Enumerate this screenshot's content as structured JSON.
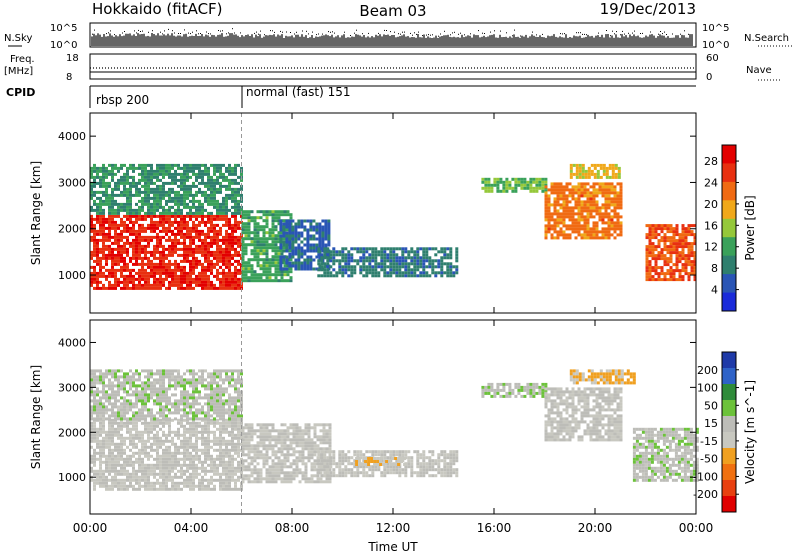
{
  "header": {
    "title": "Hokkaido (fitACF)",
    "beam": "Beam 03",
    "date": "19/Dec/2013"
  },
  "strip_labels": {
    "nsky": "N.Sky",
    "nsearch": "N.Search",
    "freq_line1": "Freq.",
    "freq_line2": "[MHz]",
    "nave": "Nave",
    "cpid": "CPID",
    "nsky_ticks": [
      "10^5",
      "10^0"
    ],
    "freq_ticks": [
      "18",
      "8"
    ],
    "nave_ticks": [
      "60",
      "0"
    ]
  },
  "cpid_modes": [
    {
      "label": "rbsp 200",
      "start_hour": 0,
      "end_hour": 6
    },
    {
      "label": "normal (fast) 151",
      "start_hour": 6,
      "end_hour": 24
    }
  ],
  "colors": {
    "power": [
      "#1a2bd9",
      "#2a55b5",
      "#2f7f6e",
      "#3aa15a",
      "#95c83a",
      "#f0a81a",
      "#f06a12",
      "#e83010",
      "#e30000"
    ],
    "velocity": [
      "#1f3aa8",
      "#2f63c8",
      "#2f8b3a",
      "#6cc23a",
      "#bdbdb8",
      "#c8c8c0",
      "#f0a020",
      "#f07010",
      "#e84010",
      "#e00000"
    ]
  },
  "chart_data": [
    {
      "type": "heatmap",
      "name": "power",
      "xlabel": "Time UT",
      "ylabel": "Slant Range [km]",
      "x_ticks": [
        "00:00",
        "04:00",
        "08:00",
        "12:00",
        "16:00",
        "20:00",
        "00:00"
      ],
      "y_ticks": [
        1000,
        2000,
        3000,
        4000
      ],
      "xlim_hours": [
        0,
        24
      ],
      "ylim_km": [
        180,
        4500
      ],
      "colorbar": {
        "label": "Power [dB]",
        "ticks": [
          4,
          8,
          12,
          16,
          20,
          24,
          28
        ],
        "range": [
          0,
          31
        ]
      },
      "regions": [
        {
          "h0": 0,
          "h1": 6,
          "r0": 700,
          "r1": 2300,
          "value": 27
        },
        {
          "h0": 0,
          "h1": 6,
          "r0": 2300,
          "r1": 3400,
          "value": 10
        },
        {
          "h0": 6,
          "h1": 8,
          "r0": 900,
          "r1": 2400,
          "value": 12
        },
        {
          "h0": 7.5,
          "h1": 9.5,
          "r0": 1100,
          "r1": 2200,
          "value": 6
        },
        {
          "h0": 9,
          "h1": 14.5,
          "r0": 1000,
          "r1": 1600,
          "value": 8
        },
        {
          "h0": 15.5,
          "h1": 18,
          "r0": 2800,
          "r1": 3100,
          "value": 14
        },
        {
          "h0": 18,
          "h1": 21,
          "r0": 1800,
          "r1": 3000,
          "value": 22
        },
        {
          "h0": 19,
          "h1": 21,
          "r0": 3100,
          "r1": 3400,
          "value": 18
        },
        {
          "h0": 22,
          "h1": 24,
          "r0": 900,
          "r1": 2100,
          "value": 24
        }
      ]
    },
    {
      "type": "heatmap",
      "name": "velocity",
      "xlabel": "Time UT",
      "ylabel": "Slant Range [km]",
      "x_ticks": [
        "00:00",
        "04:00",
        "08:00",
        "12:00",
        "16:00",
        "20:00",
        "00:00"
      ],
      "y_ticks": [
        1000,
        2000,
        3000,
        4000
      ],
      "xlim_hours": [
        0,
        24
      ],
      "ylim_km": [
        180,
        4500
      ],
      "colorbar": {
        "label": "Velocity [m s^-1]",
        "ticks": [
          200,
          100,
          50,
          15,
          -15,
          -50,
          -100,
          -200
        ],
        "range": [
          -250,
          250
        ]
      },
      "regions": [
        {
          "h0": 0,
          "h1": 6,
          "r0": 700,
          "r1": 2300,
          "value": 0
        },
        {
          "h0": 0,
          "h1": 6,
          "r0": 2300,
          "r1": 3400,
          "value": 30
        },
        {
          "h0": 6,
          "h1": 9.5,
          "r0": 900,
          "r1": 2200,
          "value": 0
        },
        {
          "h0": 9,
          "h1": 14.5,
          "r0": 1000,
          "r1": 1600,
          "value": 0
        },
        {
          "h0": 10.5,
          "h1": 12.5,
          "r0": 1300,
          "r1": 1450,
          "value": -40
        },
        {
          "h0": 15.5,
          "h1": 18,
          "r0": 2800,
          "r1": 3100,
          "value": 40
        },
        {
          "h0": 18,
          "h1": 21,
          "r0": 1800,
          "r1": 3000,
          "value": 5
        },
        {
          "h0": 19,
          "h1": 21.5,
          "r0": 3100,
          "r1": 3400,
          "value": -60
        },
        {
          "h0": 21.5,
          "h1": 24,
          "r0": 900,
          "r1": 2100,
          "value": 30
        }
      ]
    }
  ]
}
